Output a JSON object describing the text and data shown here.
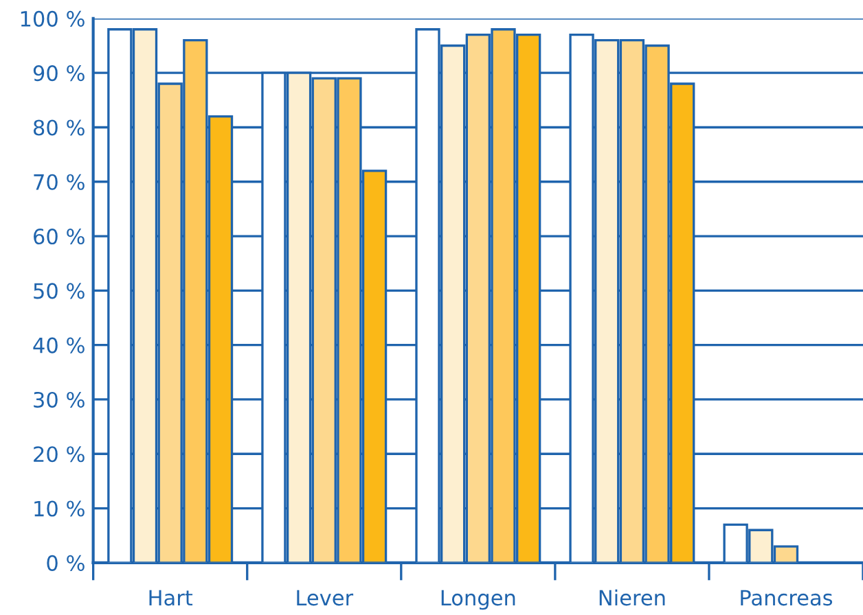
{
  "chart_data": {
    "type": "bar",
    "categories": [
      "Hart",
      "Lever",
      "Longen",
      "Nieren",
      "Pancreas"
    ],
    "series": [
      {
        "color": "#ffffff",
        "values": [
          98,
          90,
          98,
          97,
          7
        ]
      },
      {
        "color": "#fdefd0",
        "values": [
          98,
          90,
          95,
          96,
          6
        ]
      },
      {
        "color": "#fdd88e",
        "values": [
          88,
          89,
          97,
          96,
          3
        ]
      },
      {
        "color": "#fec85a",
        "values": [
          96,
          89,
          98,
          95,
          null
        ]
      },
      {
        "color": "#fbb817",
        "values": [
          82,
          72,
          97,
          88,
          null
        ]
      }
    ],
    "ylim": [
      0,
      100
    ],
    "yticks": [
      {
        "value": 0,
        "label": "0 %"
      },
      {
        "value": 10,
        "label": "10 %"
      },
      {
        "value": 20,
        "label": "20 %"
      },
      {
        "value": 30,
        "label": "30 %"
      },
      {
        "value": 40,
        "label": "40 %"
      },
      {
        "value": 50,
        "label": "50 %"
      },
      {
        "value": 60,
        "label": "60 %"
      },
      {
        "value": 70,
        "label": "70 %"
      },
      {
        "value": 80,
        "label": "80 %"
      },
      {
        "value": 90,
        "label": "90 %"
      },
      {
        "value": 100,
        "label": "100 %"
      }
    ],
    "grid": "y",
    "legend": false
  }
}
